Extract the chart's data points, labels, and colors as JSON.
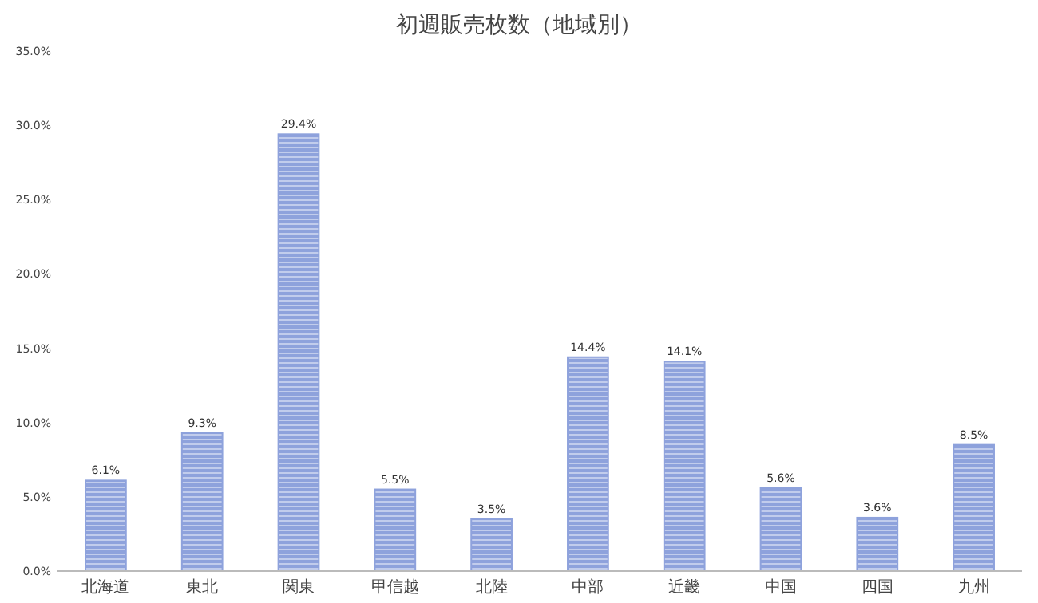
{
  "chart_data": {
    "type": "bar",
    "title": "初週販売枚数（地域別）",
    "categories": [
      "北海道",
      "東北",
      "関東",
      "甲信越",
      "北陸",
      "中部",
      "近畿",
      "中国",
      "四国",
      "九州"
    ],
    "values": [
      6.1,
      9.3,
      29.4,
      5.5,
      3.5,
      14.4,
      14.1,
      5.6,
      3.6,
      8.5
    ],
    "value_labels": [
      "6.1%",
      "9.3%",
      "29.4%",
      "5.5%",
      "3.5%",
      "14.4%",
      "14.1%",
      "5.6%",
      "3.6%",
      "8.5%"
    ],
    "color": "#8ea2dc",
    "ylim": [
      0,
      35
    ],
    "yticks": [
      {
        "value": 0,
        "label": "0.0%"
      },
      {
        "value": 5,
        "label": "5.0%"
      },
      {
        "value": 10,
        "label": "10.0%"
      },
      {
        "value": 15,
        "label": "15.0%"
      },
      {
        "value": 20,
        "label": "20.0%"
      },
      {
        "value": 25,
        "label": "25.0%"
      },
      {
        "value": 30,
        "label": "30.0%"
      },
      {
        "value": 35,
        "label": "35.0%"
      }
    ],
    "grid": false
  }
}
